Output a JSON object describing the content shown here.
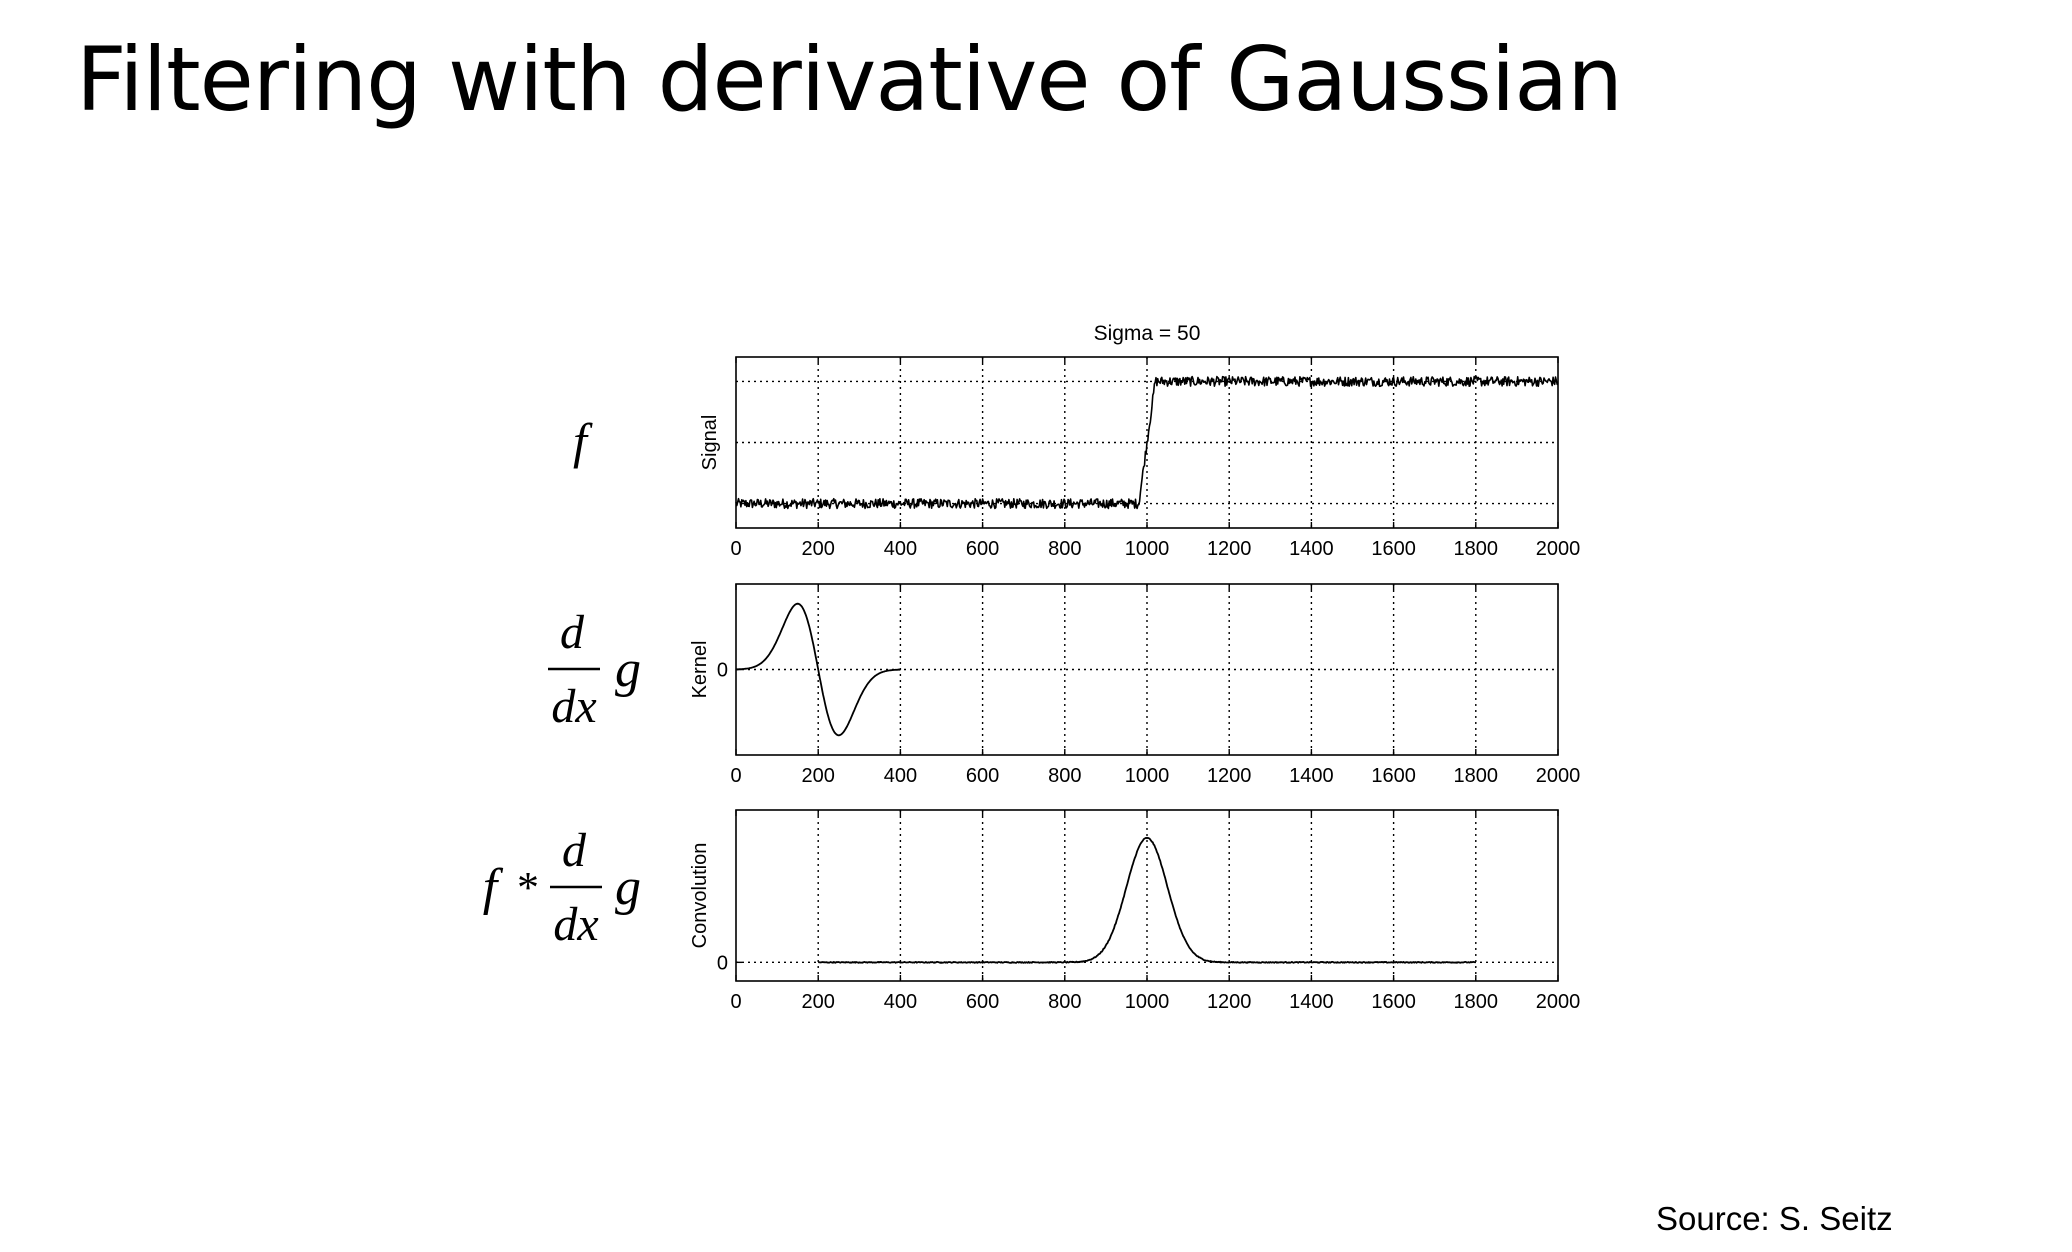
{
  "slide": {
    "title": "Filtering with derivative of Gaussian",
    "source": "Source: S. Seitz"
  },
  "row_labels": {
    "f": {
      "text": "f"
    },
    "kernel": {
      "numerator": "d",
      "denominator": "dx",
      "func": "g"
    },
    "convolution": {
      "prefix": "f",
      "operator": "*",
      "numerator": "d",
      "denominator": "dx",
      "func": "g"
    }
  },
  "chart_data": [
    {
      "type": "line",
      "title": "Sigma = 50",
      "ylabel": "Signal",
      "xlim": [
        0,
        2000
      ],
      "xticks": [
        0,
        200,
        400,
        600,
        800,
        1000,
        1200,
        1400,
        1600,
        1800,
        2000
      ],
      "yticks": [],
      "ylim": [
        -0.2,
        1.2
      ],
      "grid": true,
      "series": [
        {
          "description": "noisy step",
          "x": [
            0,
            980,
            1020,
            2000
          ],
          "y": [
            0,
            0,
            1,
            1
          ],
          "noise_amplitude": 0.04,
          "color": "#000000"
        }
      ]
    },
    {
      "type": "line",
      "title": "",
      "ylabel": "Kernel",
      "xlim": [
        0,
        2000
      ],
      "xticks": [
        0,
        200,
        400,
        600,
        800,
        1000,
        1200,
        1400,
        1600,
        1800,
        2000
      ],
      "yticks": [
        0
      ],
      "ylim": [
        -1.3,
        1.3
      ],
      "grid": true,
      "series": [
        {
          "description": "derivative of Gaussian, centered 200, sigma 50",
          "x": [
            0,
            100,
            150,
            200,
            250,
            300,
            400
          ],
          "y": [
            0.0,
            0.66,
            1.0,
            0.0,
            -1.0,
            -0.66,
            0.0
          ],
          "color": "#000000"
        }
      ]
    },
    {
      "type": "line",
      "title": "",
      "ylabel": "Convolution",
      "xlim": [
        0,
        2000
      ],
      "xticks": [
        0,
        200,
        400,
        600,
        800,
        1000,
        1200,
        1400,
        1600,
        1800,
        2000
      ],
      "yticks": [
        0
      ],
      "ylim": [
        -0.12,
        0.98
      ],
      "grid": true,
      "series": [
        {
          "description": "Gaussian response peaked at 1000",
          "x": [
            200,
            850,
            900,
            950,
            1000,
            1050,
            1100,
            1150,
            1800
          ],
          "y": [
            0.0,
            0.05,
            0.25,
            0.72,
            0.8,
            0.72,
            0.25,
            0.05,
            0.0
          ],
          "color": "#000000"
        }
      ]
    }
  ]
}
